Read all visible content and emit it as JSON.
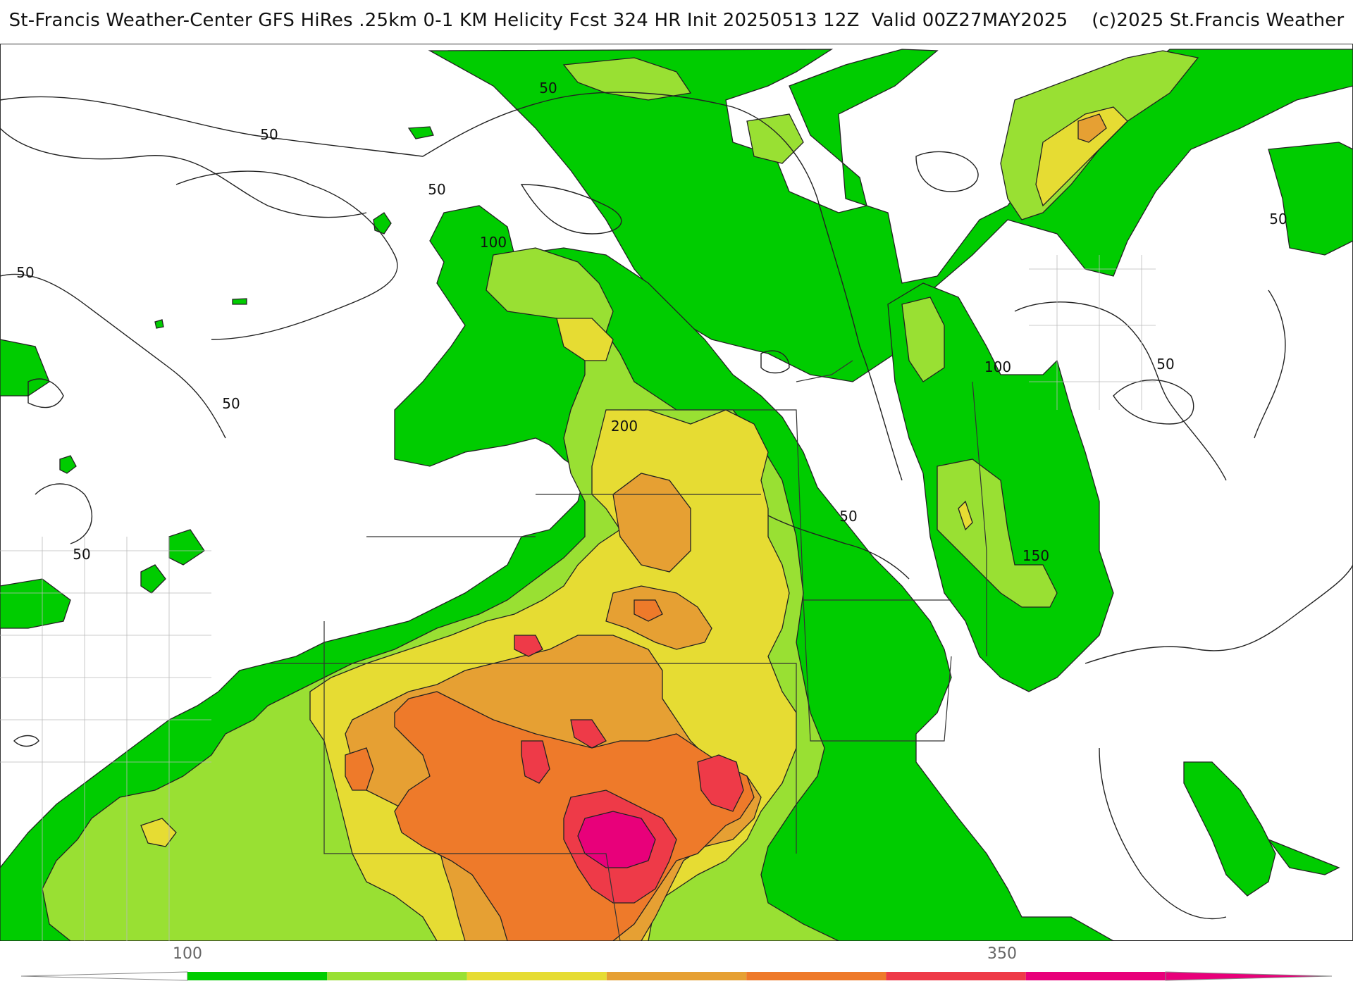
{
  "header": {
    "title": "St-Francis Weather-Center GFS HiRes .25km 0-1 KM Helicity Fcst 324 HR Init 20250513 12Z  Valid 00Z27MAY2025    (c)2025 St.Francis Weather"
  },
  "map": {
    "variable": "0-1 KM Helicity",
    "contour_labels": [
      "50",
      "50",
      "50",
      "100",
      "50",
      "50",
      "50",
      "200",
      "50",
      "100",
      "50",
      "150",
      "50"
    ],
    "colors": {
      "ocean_land_bg": "#ffffff",
      "band_100_150": "#00cc00",
      "band_150_200": "#99e033",
      "band_200_250": "#e6dc33",
      "band_250_300": "#e6a033",
      "band_300_350": "#ee7a2a",
      "band_350_400": "#ee3a48",
      "band_400_plus": "#e8007a",
      "boundary": "#333333",
      "county": "#bbbbbb"
    }
  },
  "colorbar": {
    "labels": [
      "100",
      "350"
    ],
    "bins": [
      "#00cc00",
      "#99e033",
      "#e6dc33",
      "#e6a033",
      "#ee7a2a",
      "#ee3a48",
      "#e8007a"
    ]
  }
}
